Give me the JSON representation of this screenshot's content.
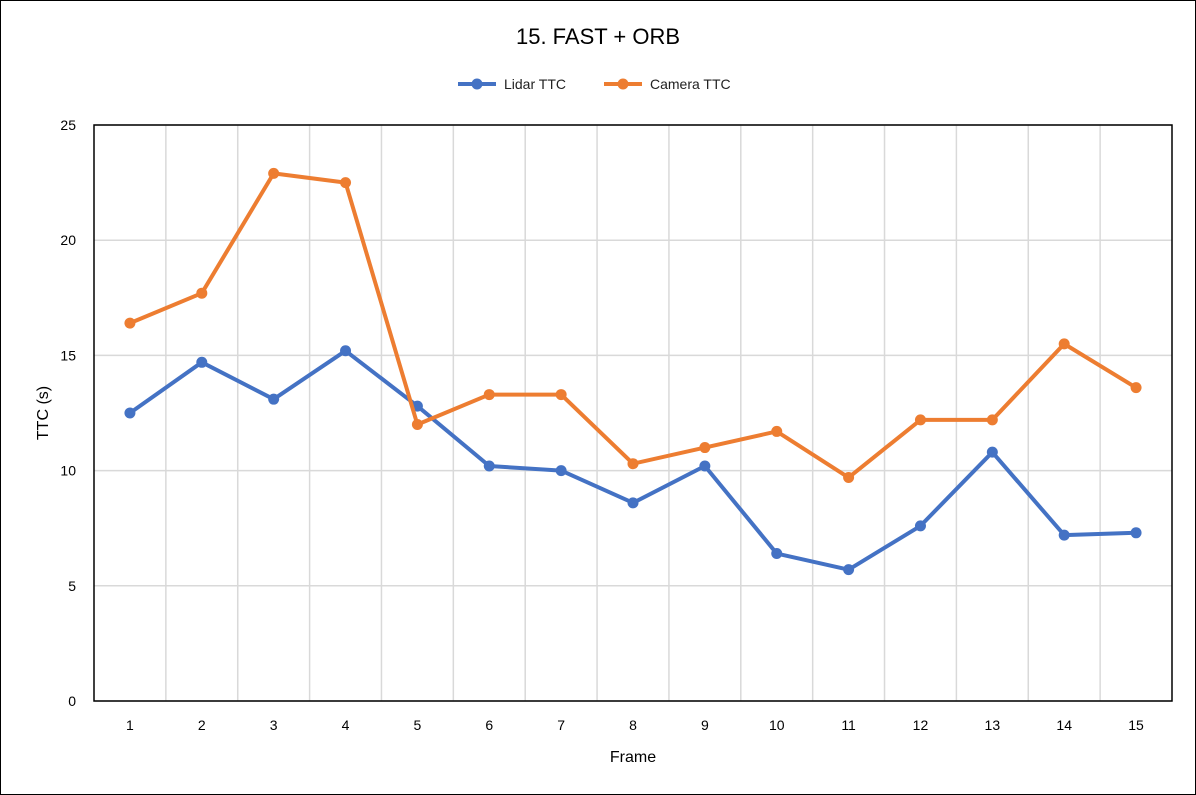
{
  "chart_data": {
    "type": "line",
    "title": "15. FAST + ORB",
    "xlabel": "Frame",
    "ylabel": "TTC (s)",
    "ylim": [
      0,
      25
    ],
    "yticks": [
      "0",
      "5",
      "10",
      "15",
      "20",
      "25"
    ],
    "categories": [
      "1",
      "2",
      "3",
      "4",
      "5",
      "6",
      "7",
      "8",
      "9",
      "10",
      "11",
      "12",
      "13",
      "14",
      "15"
    ],
    "grid": true,
    "legend_position": "top",
    "series": [
      {
        "name": "Lidar TTC",
        "color": "#4472C4",
        "values": [
          12.5,
          14.7,
          13.1,
          15.2,
          12.8,
          10.2,
          10.0,
          8.6,
          10.2,
          6.4,
          5.7,
          7.6,
          10.8,
          7.2,
          7.3
        ]
      },
      {
        "name": "Camera TTC",
        "color": "#ED7D31",
        "values": [
          16.4,
          17.7,
          22.9,
          22.5,
          12.0,
          13.3,
          13.3,
          10.3,
          11.0,
          11.7,
          9.7,
          12.2,
          12.2,
          15.5,
          13.6
        ]
      }
    ]
  }
}
